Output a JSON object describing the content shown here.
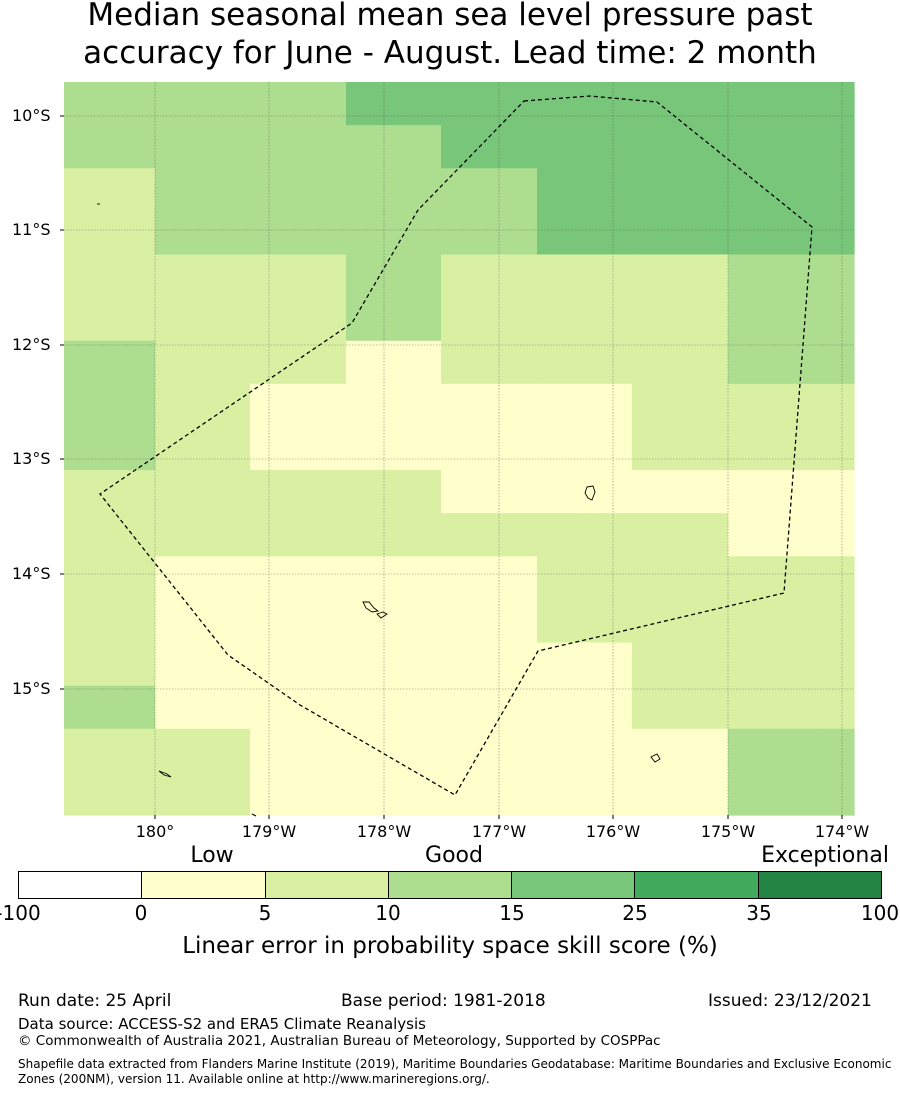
{
  "title_line1": "Median seasonal mean sea level pressure past",
  "title_line2": "accuracy for June - August. Lead time: 2 month",
  "map": {
    "lat_labels": [
      "10°S",
      "11°S",
      "12°S",
      "13°S",
      "14°S",
      "15°S"
    ],
    "lon_labels": [
      "180°",
      "179°W",
      "178°W",
      "177°W",
      "176°W",
      "175°W",
      "174°W"
    ],
    "cell_classes": [
      [
        2,
        2,
        2,
        3,
        3,
        3,
        3,
        3
      ],
      [
        2,
        2,
        2,
        2,
        3,
        3,
        3,
        3
      ],
      [
        1,
        2,
        2,
        2,
        2,
        3,
        3,
        3
      ],
      [
        1,
        2,
        2,
        2,
        2,
        3,
        3,
        3
      ],
      [
        1,
        1,
        1,
        2,
        1,
        1,
        1,
        2
      ],
      [
        1,
        1,
        1,
        2,
        1,
        1,
        1,
        2
      ],
      [
        2,
        1,
        1,
        0,
        1,
        1,
        1,
        2
      ],
      [
        2,
        1,
        0,
        0,
        0,
        0,
        1,
        1
      ],
      [
        2,
        1,
        0,
        0,
        0,
        0,
        1,
        1
      ],
      [
        1,
        1,
        1,
        1,
        0,
        0,
        0,
        0
      ],
      [
        1,
        1,
        1,
        1,
        1,
        1,
        1,
        0
      ],
      [
        1,
        0,
        0,
        0,
        0,
        1,
        1,
        1
      ],
      [
        1,
        0,
        0,
        0,
        0,
        1,
        1,
        1
      ],
      [
        1,
        0,
        0,
        0,
        0,
        0,
        1,
        1
      ],
      [
        2,
        0,
        0,
        0,
        0,
        0,
        1,
        1
      ],
      [
        1,
        1,
        0,
        0,
        0,
        0,
        0,
        2
      ],
      [
        1,
        1,
        0,
        0,
        0,
        0,
        0,
        2
      ]
    ],
    "class_colors": [
      "#ffffcc",
      "#d9f0a3",
      "#addd8e",
      "#78c679",
      "#41ab5d",
      "#238443"
    ]
  },
  "colorbar": {
    "categories": [
      "Low",
      "Good",
      "Exceptional"
    ],
    "colors": [
      "#ffffff",
      "#ffffcc",
      "#d9f0a3",
      "#addd8e",
      "#78c679",
      "#41ab5d",
      "#238443"
    ],
    "ticks": [
      "-100",
      "0",
      "5",
      "10",
      "15",
      "25",
      "35",
      "100"
    ],
    "label": "Linear error in probability space skill score (%)"
  },
  "footer": {
    "run_date": "Run date: 25 April",
    "base_period": "Base period: 1981-2018",
    "issued": "Issued: 23/12/2021",
    "data_source": "Data source: ACCESS-S2 and ERA5 Climate Reanalysis",
    "copyright": "© Commonwealth of Australia 2021, Australian Bureau of Meteorology, Supported by COSPPac",
    "shapefile": "Shapefile data extracted from Flanders Marine Institute (2019), Maritime Boundaries Geodatabase: Maritime Boundaries and Exclusive Economic Zones (200NM), version 11. Available online at http://www.marineregions.org/."
  }
}
